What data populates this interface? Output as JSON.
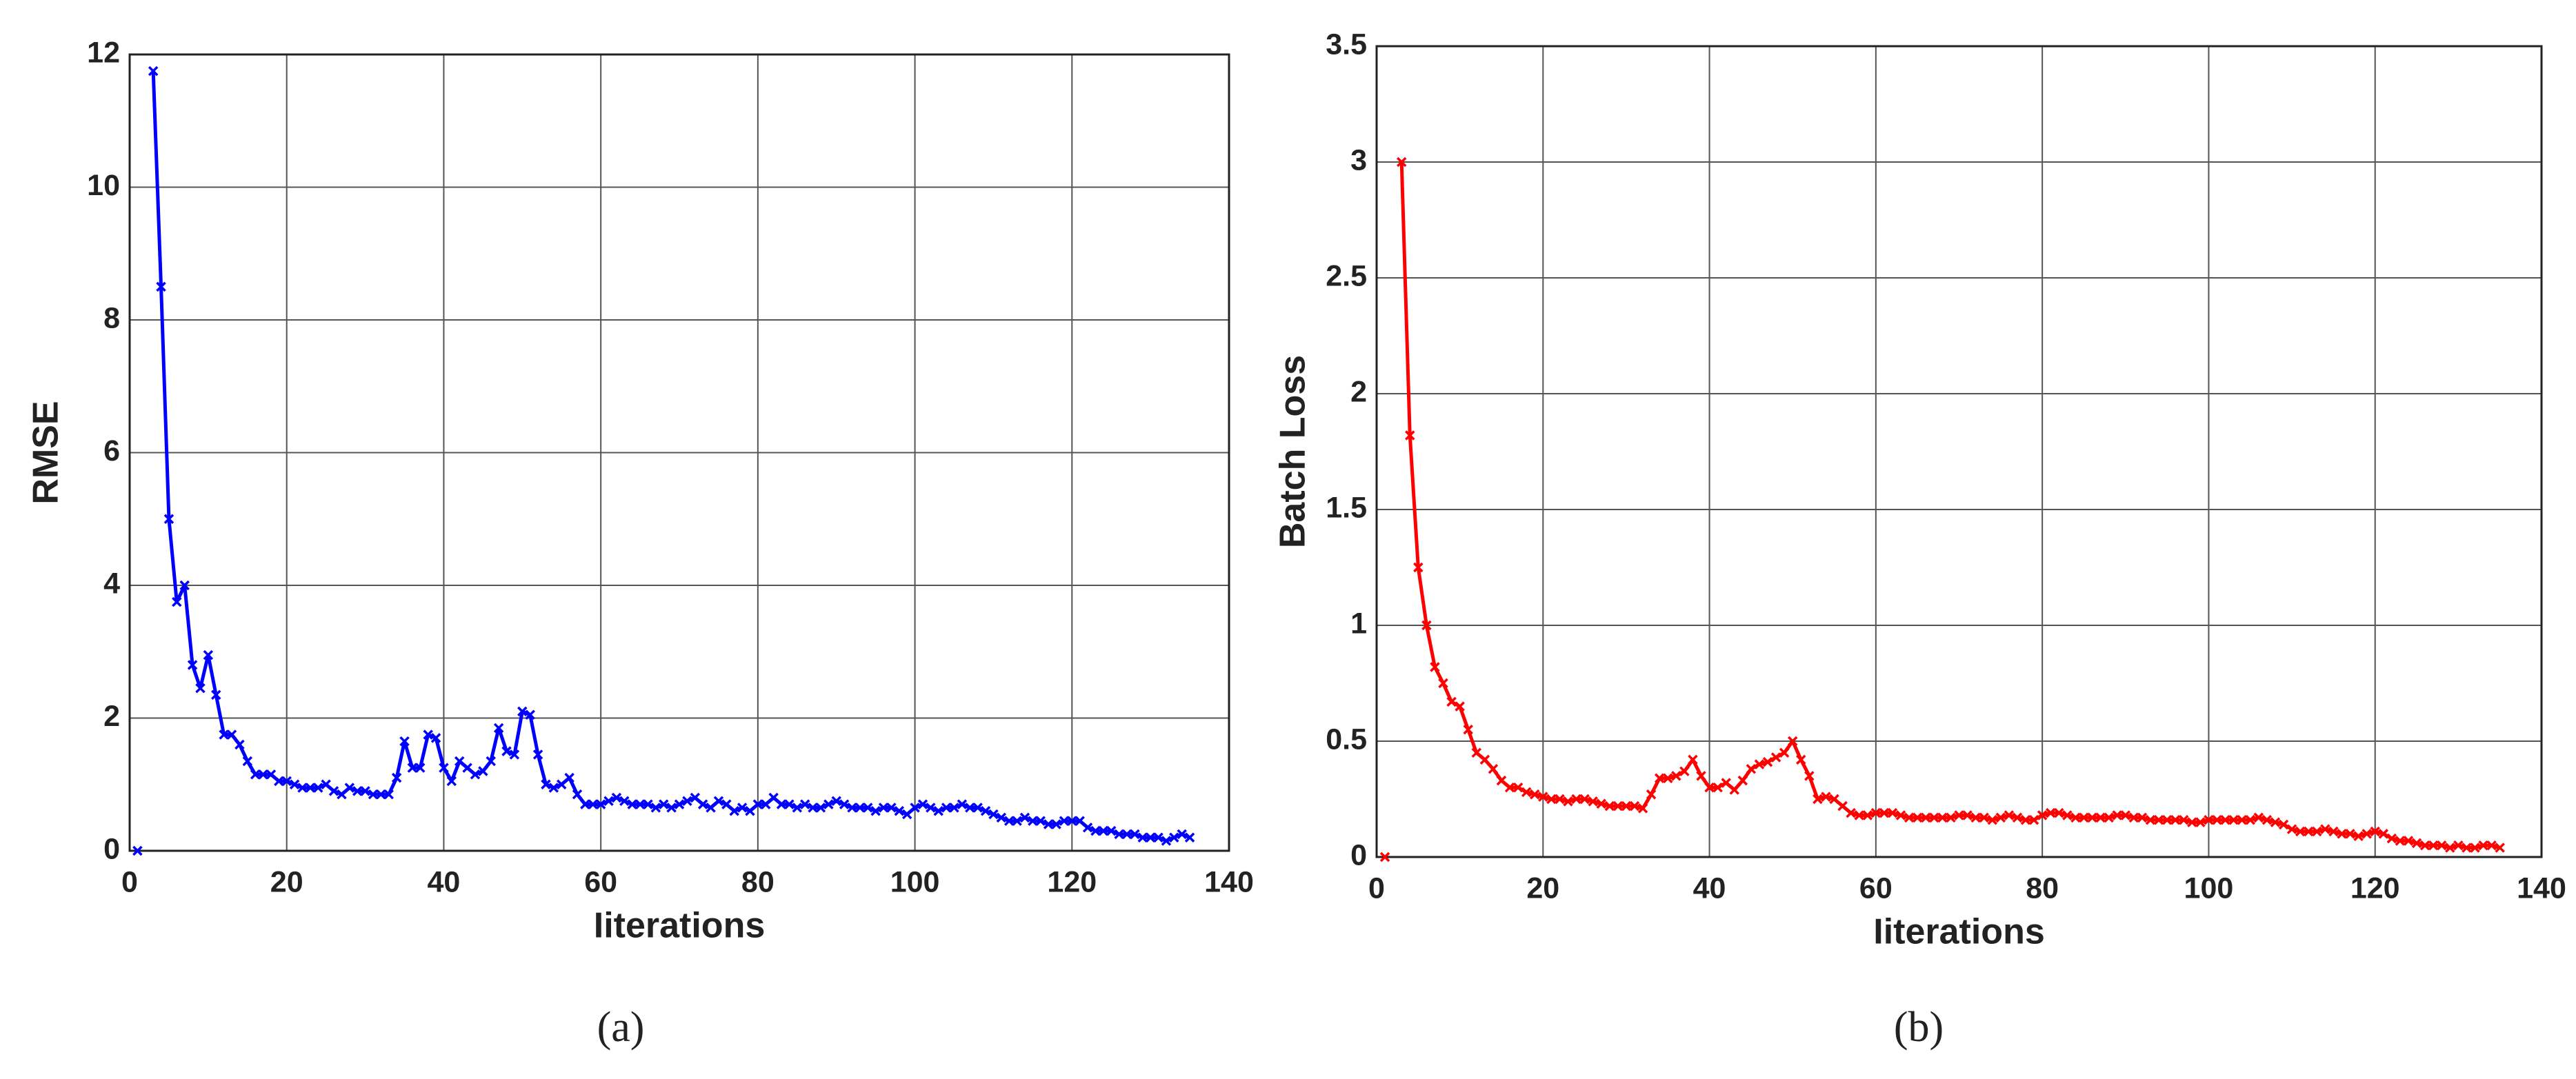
{
  "chart_data": [
    {
      "type": "line",
      "color": "#0000ff",
      "ylabel": "RMSE",
      "xlabel": "Iiterations",
      "caption": "(a)",
      "xlim": [
        0,
        140
      ],
      "xticks": [
        0,
        20,
        40,
        60,
        80,
        100,
        120,
        140
      ],
      "ylim": [
        0,
        12
      ],
      "yticks": [
        0,
        2,
        4,
        6,
        8,
        10,
        12
      ],
      "grid": true,
      "x": [
        1,
        2,
        3,
        4,
        5,
        6,
        7,
        8,
        9,
        10,
        11,
        12,
        13,
        14,
        15,
        16,
        17,
        18,
        19,
        20,
        21,
        22,
        23,
        24,
        25,
        26,
        27,
        28,
        29,
        30,
        31,
        32,
        33,
        34,
        35,
        36,
        37,
        38,
        39,
        40,
        41,
        42,
        43,
        44,
        45,
        46,
        47,
        48,
        49,
        50,
        51,
        52,
        53,
        54,
        55,
        56,
        57,
        58,
        59,
        60,
        61,
        62,
        63,
        64,
        65,
        66,
        67,
        68,
        69,
        70,
        71,
        72,
        73,
        74,
        75,
        76,
        77,
        78,
        79,
        80,
        81,
        82,
        83,
        84,
        85,
        86,
        87,
        88,
        89,
        90,
        91,
        92,
        93,
        94,
        95,
        96,
        97,
        98,
        99,
        100,
        101,
        102,
        103,
        104,
        105,
        106,
        107,
        108,
        109,
        110,
        111,
        112,
        113,
        114,
        115,
        116,
        117,
        118,
        119,
        120,
        121,
        122,
        123,
        124,
        125,
        126,
        127,
        128,
        129,
        130,
        131,
        132,
        133,
        134,
        135
      ],
      "values": [
        0,
        null,
        11.75,
        8.5,
        5.0,
        3.75,
        4.0,
        2.8,
        2.45,
        2.95,
        2.35,
        1.75,
        1.75,
        1.6,
        1.35,
        1.15,
        1.15,
        1.15,
        1.05,
        1.05,
        1.0,
        0.95,
        0.95,
        0.95,
        1.0,
        0.9,
        0.85,
        0.95,
        0.9,
        0.9,
        0.85,
        0.85,
        0.85,
        1.1,
        1.65,
        1.25,
        1.25,
        1.75,
        1.7,
        1.25,
        1.05,
        1.35,
        1.25,
        1.15,
        1.2,
        1.35,
        1.85,
        1.5,
        1.45,
        2.1,
        2.05,
        1.45,
        1.0,
        0.95,
        1.0,
        1.1,
        0.85,
        0.7,
        0.7,
        0.7,
        0.75,
        0.8,
        0.75,
        0.7,
        0.7,
        0.7,
        0.65,
        0.7,
        0.65,
        0.7,
        0.75,
        0.8,
        0.7,
        0.65,
        0.75,
        0.7,
        0.6,
        0.65,
        0.6,
        0.7,
        0.7,
        0.8,
        0.7,
        0.7,
        0.65,
        0.7,
        0.65,
        0.65,
        0.7,
        0.75,
        0.7,
        0.65,
        0.65,
        0.65,
        0.6,
        0.65,
        0.65,
        0.6,
        0.55,
        0.65,
        0.7,
        0.65,
        0.6,
        0.65,
        0.65,
        0.7,
        0.65,
        0.65,
        0.6,
        0.55,
        0.5,
        0.45,
        0.45,
        0.5,
        0.45,
        0.45,
        0.4,
        0.4,
        0.45,
        0.45,
        0.45,
        0.35,
        0.3,
        0.3,
        0.3,
        0.25,
        0.25,
        0.25,
        0.2,
        0.2,
        0.2,
        0.15,
        0.2,
        0.25,
        0.2
      ]
    },
    {
      "type": "line",
      "color": "#ff0000",
      "ylabel": "Batch Loss",
      "xlabel": "Iiterations",
      "caption": "(b)",
      "xlim": [
        0,
        140
      ],
      "xticks": [
        0,
        20,
        40,
        60,
        80,
        100,
        120,
        140
      ],
      "ylim": [
        0,
        3.5
      ],
      "yticks": [
        0,
        0.5,
        1,
        1.5,
        2,
        2.5,
        3,
        3.5
      ],
      "grid": true,
      "x": [
        1,
        2,
        3,
        4,
        5,
        6,
        7,
        8,
        9,
        10,
        11,
        12,
        13,
        14,
        15,
        16,
        17,
        18,
        19,
        20,
        21,
        22,
        23,
        24,
        25,
        26,
        27,
        28,
        29,
        30,
        31,
        32,
        33,
        34,
        35,
        36,
        37,
        38,
        39,
        40,
        41,
        42,
        43,
        44,
        45,
        46,
        47,
        48,
        49,
        50,
        51,
        52,
        53,
        54,
        55,
        56,
        57,
        58,
        59,
        60,
        61,
        62,
        63,
        64,
        65,
        66,
        67,
        68,
        69,
        70,
        71,
        72,
        73,
        74,
        75,
        76,
        77,
        78,
        79,
        80,
        81,
        82,
        83,
        84,
        85,
        86,
        87,
        88,
        89,
        90,
        91,
        92,
        93,
        94,
        95,
        96,
        97,
        98,
        99,
        100,
        101,
        102,
        103,
        104,
        105,
        106,
        107,
        108,
        109,
        110,
        111,
        112,
        113,
        114,
        115,
        116,
        117,
        118,
        119,
        120,
        121,
        122,
        123,
        124,
        125,
        126,
        127,
        128,
        129,
        130,
        131,
        132,
        133,
        134,
        135
      ],
      "values": [
        0,
        null,
        3.0,
        1.82,
        1.25,
        1.0,
        0.82,
        0.75,
        0.67,
        0.65,
        0.55,
        0.45,
        0.42,
        0.38,
        0.33,
        0.3,
        0.3,
        0.28,
        0.27,
        0.26,
        0.25,
        0.25,
        0.24,
        0.25,
        0.25,
        0.24,
        0.23,
        0.22,
        0.22,
        0.22,
        0.22,
        0.21,
        0.27,
        0.34,
        0.34,
        0.35,
        0.37,
        0.42,
        0.35,
        0.3,
        0.3,
        0.32,
        0.29,
        0.33,
        0.38,
        0.4,
        0.41,
        0.43,
        0.45,
        0.5,
        0.42,
        0.35,
        0.25,
        0.26,
        0.25,
        0.22,
        0.19,
        0.18,
        0.18,
        0.19,
        0.19,
        0.19,
        0.18,
        0.17,
        0.17,
        0.17,
        0.17,
        0.17,
        0.17,
        0.18,
        0.18,
        0.17,
        0.17,
        0.16,
        0.17,
        0.18,
        0.17,
        0.16,
        0.16,
        0.18,
        0.19,
        0.19,
        0.18,
        0.17,
        0.17,
        0.17,
        0.17,
        0.17,
        0.18,
        0.18,
        0.17,
        0.17,
        0.16,
        0.16,
        0.16,
        0.16,
        0.16,
        0.15,
        0.15,
        0.16,
        0.16,
        0.16,
        0.16,
        0.16,
        0.16,
        0.17,
        0.16,
        0.15,
        0.14,
        0.12,
        0.11,
        0.11,
        0.11,
        0.12,
        0.11,
        0.1,
        0.1,
        0.09,
        0.1,
        0.11,
        0.1,
        0.08,
        0.07,
        0.07,
        0.06,
        0.05,
        0.05,
        0.05,
        0.04,
        0.05,
        0.04,
        0.04,
        0.05,
        0.05,
        0.04
      ]
    }
  ]
}
